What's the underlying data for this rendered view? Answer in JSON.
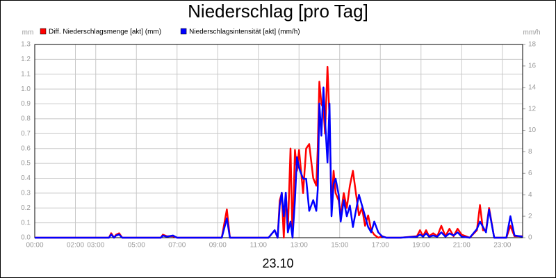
{
  "chart_data": {
    "type": "line",
    "title": "Niederschlag [pro Tag]",
    "xlabel": "23.10",
    "ylabel": "mm",
    "y2label": "mm/h",
    "grid": true,
    "xlim": [
      0,
      24
    ],
    "xticks": [
      {
        "value": 0,
        "label": "00:00"
      },
      {
        "value": 2,
        "label": "02:00"
      },
      {
        "value": 3,
        "label": "03:00"
      },
      {
        "value": 5,
        "label": "05:00"
      },
      {
        "value": 7,
        "label": "07:00"
      },
      {
        "value": 9,
        "label": "09:00"
      },
      {
        "value": 11,
        "label": "11:00"
      },
      {
        "value": 13,
        "label": "13:00"
      },
      {
        "value": 15,
        "label": "15:00"
      },
      {
        "value": 17,
        "label": "17:00"
      },
      {
        "value": 19,
        "label": "19:00"
      },
      {
        "value": 21,
        "label": "21:00"
      },
      {
        "value": 23,
        "label": "23:00"
      }
    ],
    "ylim": [
      0,
      1.3
    ],
    "yticks": [
      {
        "value": 0,
        "label": "0.0"
      },
      0.1,
      0.2,
      0.3,
      0.4,
      0.5,
      0.6,
      0.7,
      0.8,
      0.9,
      {
        "value": 1,
        "label": "1.0"
      },
      1.1,
      1.2,
      1.3
    ],
    "y2lim": [
      0,
      18
    ],
    "y2ticks": [
      0,
      2,
      4,
      6,
      8,
      10,
      12,
      14,
      16,
      18
    ],
    "x": [
      0,
      3.65,
      3.76,
      3.9,
      4.0,
      4.15,
      4.3,
      6.2,
      6.3,
      6.5,
      6.8,
      7.0,
      9.2,
      9.45,
      9.6,
      11.5,
      11.8,
      11.95,
      12.05,
      12.15,
      12.25,
      12.35,
      12.45,
      12.58,
      12.68,
      12.8,
      12.9,
      13.0,
      13.2,
      13.35,
      13.5,
      13.7,
      13.85,
      13.92,
      14.0,
      14.1,
      14.2,
      14.28,
      14.4,
      14.5,
      14.6,
      14.7,
      14.8,
      14.95,
      15.05,
      15.2,
      15.35,
      15.5,
      15.65,
      15.8,
      15.95,
      16.1,
      16.25,
      16.4,
      16.55,
      16.7,
      16.9,
      17.1,
      17.3,
      18.0,
      18.8,
      18.95,
      19.1,
      19.25,
      19.4,
      19.6,
      19.8,
      20.0,
      20.2,
      20.4,
      20.6,
      20.8,
      21.0,
      21.4,
      21.75,
      21.9,
      22.05,
      22.2,
      22.35,
      22.6,
      23.2,
      23.4,
      23.6,
      24
    ],
    "series": [
      {
        "name": "Diff. Niederschlagsmenge [akt] (mm)",
        "color": "#ff0000",
        "values": [
          0,
          0,
          0.03,
          0,
          0.02,
          0.03,
          0,
          0,
          0.02,
          0.01,
          0.01,
          0,
          0,
          0.19,
          0,
          0,
          0.05,
          0,
          0.25,
          0.3,
          0.0,
          0.3,
          0.05,
          0.6,
          0.0,
          0.59,
          0.45,
          0.59,
          0.3,
          0.6,
          0.63,
          0.4,
          0.35,
          0.6,
          1.05,
          0.9,
          0.87,
          0.7,
          1.15,
          0.8,
          0.2,
          0.45,
          0.3,
          0.25,
          0.15,
          0.3,
          0.2,
          0.35,
          0.45,
          0.3,
          0.15,
          0.2,
          0.08,
          0.15,
          0.05,
          0.02,
          0.0,
          0.01,
          0,
          0,
          0.01,
          0.05,
          0.01,
          0.05,
          0.01,
          0.03,
          0.01,
          0.08,
          0.01,
          0.06,
          0.01,
          0.06,
          0.02,
          0,
          0.05,
          0.22,
          0.05,
          0.05,
          0.2,
          0,
          0,
          0.08,
          0.01,
          0.01
        ]
      },
      {
        "name": "Niederschlagsintensität [akt] (mm/h)",
        "color": "#0000ff",
        "axis": "y2",
        "values": [
          0,
          0,
          0.3,
          0,
          0.2,
          0.3,
          0,
          0,
          0.2,
          0.1,
          0.2,
          0,
          0,
          1.8,
          0,
          0,
          0.7,
          0,
          3.0,
          4.2,
          2.0,
          4.2,
          0.5,
          1.5,
          0,
          3.5,
          7.5,
          6.5,
          5.5,
          5.5,
          2.5,
          3.5,
          2.5,
          4.5,
          12.5,
          9.5,
          14.0,
          11.0,
          7.0,
          12.5,
          2.0,
          5.0,
          5.5,
          4.0,
          1.5,
          3.5,
          2.0,
          3.0,
          1.0,
          2.5,
          4.0,
          3.0,
          2.0,
          1.0,
          0.5,
          1.5,
          0.5,
          0.1,
          0,
          0,
          0.1,
          0.3,
          0.1,
          0.4,
          0.1,
          0.2,
          0.1,
          0.5,
          0.1,
          0.4,
          0.2,
          0.5,
          0.1,
          0,
          0.8,
          1.5,
          1.0,
          0.5,
          2.6,
          0,
          0,
          2.0,
          0.2,
          0.1
        ]
      }
    ]
  }
}
